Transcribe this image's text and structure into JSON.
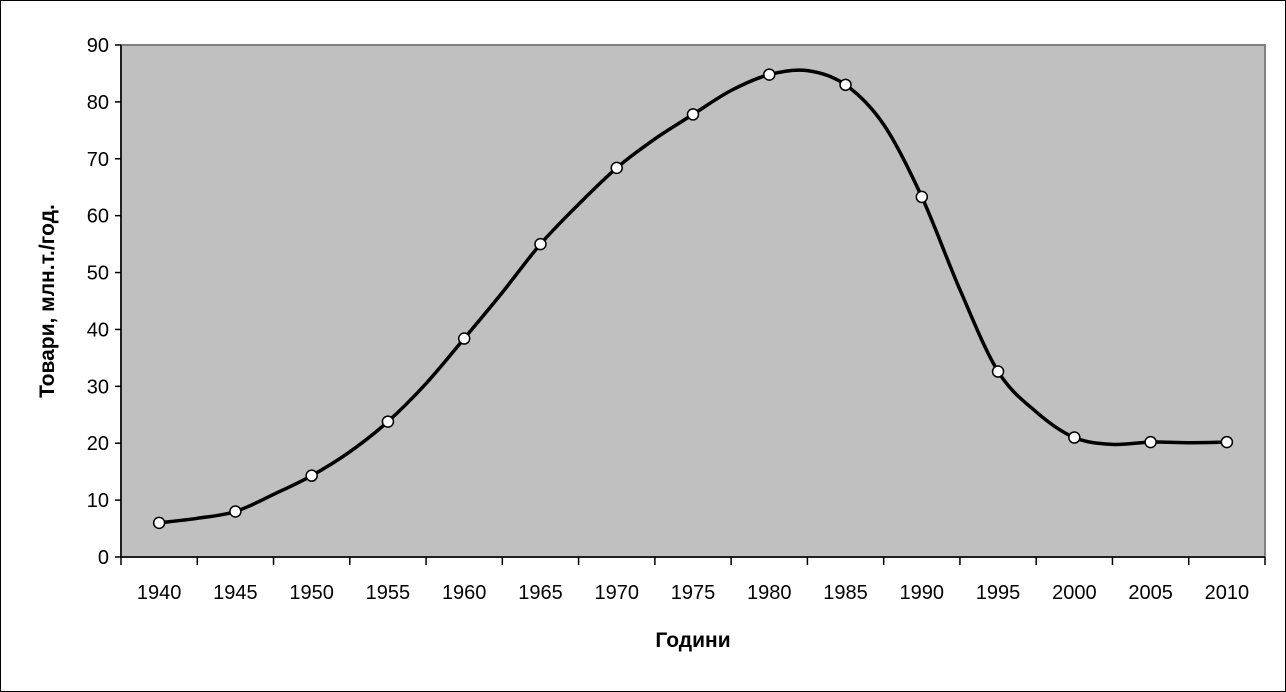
{
  "chart_data": {
    "type": "line",
    "title": "",
    "xlabel": "Години",
    "ylabel": "Товари, млн.т./год.",
    "categories": [
      "1940",
      "1945",
      "1950",
      "1955",
      "1960",
      "1965",
      "1970",
      "1975",
      "1980",
      "1985",
      "1990",
      "1995",
      "2000",
      "2005",
      "2010"
    ],
    "yticks": [
      "0",
      "10",
      "20",
      "30",
      "40",
      "50",
      "60",
      "70",
      "80",
      "90"
    ],
    "ylim": [
      0,
      90
    ],
    "grid": false,
    "legend": "none",
    "plot_background": "#c0c0c0",
    "line_color": "#000000",
    "marker_fill": "#ffffff",
    "series": [
      {
        "smooth": true,
        "points": [
          {
            "x": 1940.0,
            "y": 6.0,
            "marker": true
          },
          {
            "x": 1942.5,
            "y": 6.8,
            "marker": false
          },
          {
            "x": 1945.0,
            "y": 8.0,
            "marker": true
          },
          {
            "x": 1947.5,
            "y": 11.0,
            "marker": false
          },
          {
            "x": 1950.0,
            "y": 14.3,
            "marker": true
          },
          {
            "x": 1952.5,
            "y": 18.5,
            "marker": false
          },
          {
            "x": 1955.0,
            "y": 23.8,
            "marker": true
          },
          {
            "x": 1957.5,
            "y": 30.5,
            "marker": false
          },
          {
            "x": 1960.0,
            "y": 38.4,
            "marker": true
          },
          {
            "x": 1962.5,
            "y": 46.5,
            "marker": false
          },
          {
            "x": 1965.0,
            "y": 55.0,
            "marker": true
          },
          {
            "x": 1967.5,
            "y": 62.0,
            "marker": false
          },
          {
            "x": 1970.0,
            "y": 68.4,
            "marker": true
          },
          {
            "x": 1972.5,
            "y": 73.5,
            "marker": false
          },
          {
            "x": 1975.0,
            "y": 77.8,
            "marker": true
          },
          {
            "x": 1977.5,
            "y": 82.0,
            "marker": false
          },
          {
            "x": 1980.0,
            "y": 84.8,
            "marker": true
          },
          {
            "x": 1982.5,
            "y": 85.5,
            "marker": false
          },
          {
            "x": 1985.0,
            "y": 83.0,
            "marker": true
          },
          {
            "x": 1987.5,
            "y": 76.0,
            "marker": false
          },
          {
            "x": 1990.0,
            "y": 63.3,
            "marker": true
          },
          {
            "x": 1992.5,
            "y": 47.0,
            "marker": false
          },
          {
            "x": 1995.0,
            "y": 32.6,
            "marker": true
          },
          {
            "x": 1997.5,
            "y": 25.5,
            "marker": false
          },
          {
            "x": 2000.0,
            "y": 21.0,
            "marker": true
          },
          {
            "x": 2002.5,
            "y": 19.8,
            "marker": false
          },
          {
            "x": 2005.0,
            "y": 20.2,
            "marker": true
          },
          {
            "x": 2007.5,
            "y": 20.1,
            "marker": false
          },
          {
            "x": 2010.0,
            "y": 20.2,
            "marker": true
          }
        ]
      }
    ]
  }
}
